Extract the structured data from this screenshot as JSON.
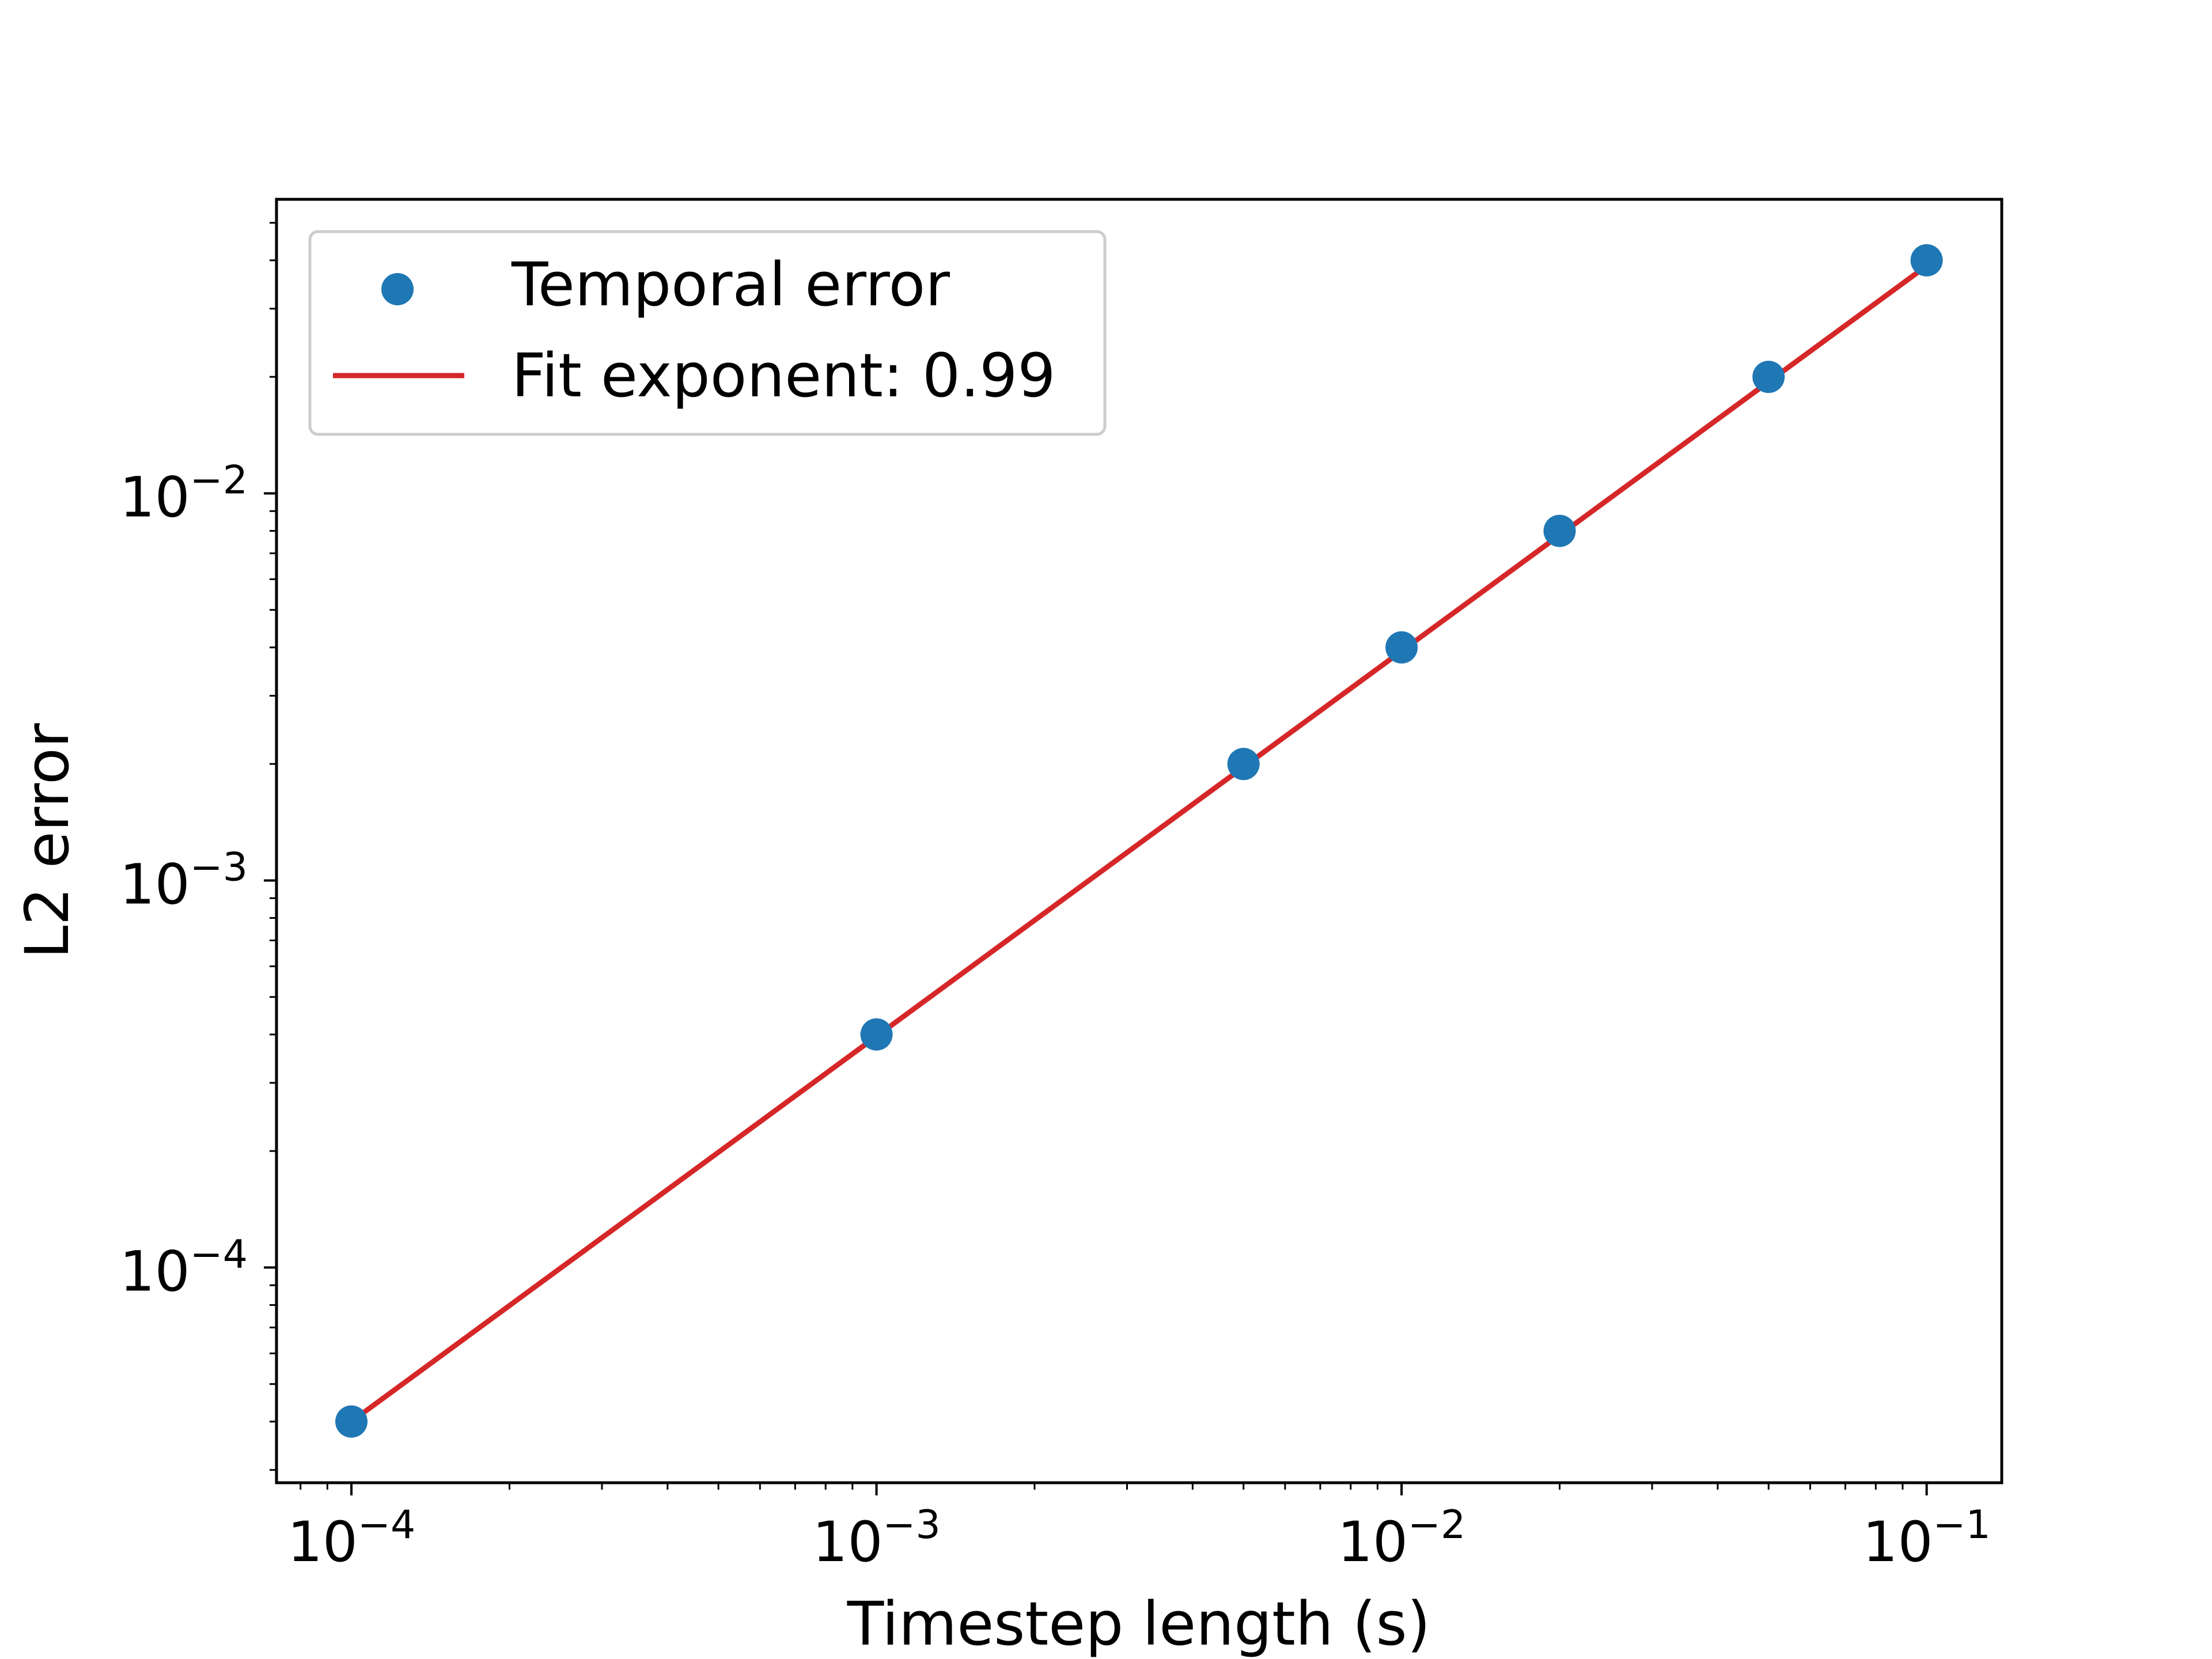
{
  "chart_data": {
    "type": "scatter",
    "xlabel": "Timestep length (s)",
    "ylabel": "L2 error",
    "xscale": "log",
    "yscale": "log",
    "xlim": [
      7.2e-05,
      0.139
    ],
    "ylim": [
      2.78e-05,
      0.0575
    ],
    "grid": false,
    "legend_position": "top-left",
    "x_ticks": [
      {
        "value": 0.0001,
        "base": "10",
        "exp": "−4"
      },
      {
        "value": 0.001,
        "base": "10",
        "exp": "−3"
      },
      {
        "value": 0.01,
        "base": "10",
        "exp": "−2"
      },
      {
        "value": 0.1,
        "base": "10",
        "exp": "−1"
      }
    ],
    "y_ticks": [
      {
        "value": 0.0001,
        "base": "10",
        "exp": "−4"
      },
      {
        "value": 0.001,
        "base": "10",
        "exp": "−3"
      },
      {
        "value": 0.01,
        "base": "10",
        "exp": "−2"
      }
    ],
    "series": [
      {
        "name": "Temporal error",
        "kind": "scatter",
        "color": "#1f77b4",
        "x": [
          0.0001,
          0.001,
          0.005,
          0.01,
          0.02,
          0.05,
          0.1
        ],
        "y": [
          4e-05,
          0.0004,
          0.002,
          0.004,
          0.008,
          0.02,
          0.04
        ]
      },
      {
        "name": "Fit exponent: 0.99",
        "kind": "line",
        "color": "#d62728",
        "x": [
          0.0001,
          0.1
        ],
        "y": [
          4e-05,
          0.0387
        ]
      }
    ]
  }
}
